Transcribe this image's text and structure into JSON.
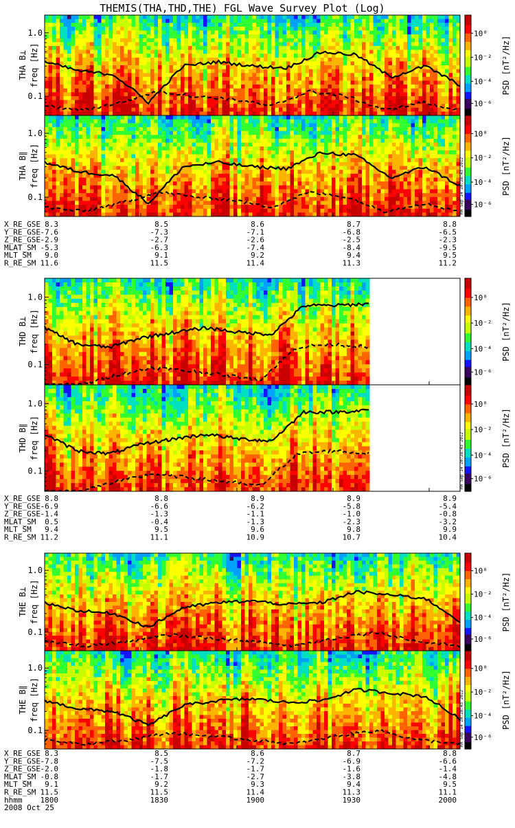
{
  "title": "THEMIS(THA,THD,THE) FGL Wave Survey Plot (Log)",
  "colorbar": {
    "label": "PSD [nT²/Hz]",
    "tick_labels": [
      "10⁰",
      "10⁻²",
      "10⁻⁴",
      "10⁻⁶"
    ],
    "colors": [
      "#000000",
      "#3a0060",
      "#1414ff",
      "#00a0ff",
      "#00e0c0",
      "#32ff32",
      "#c8ff00",
      "#ffff00",
      "#ffb400",
      "#ff6400",
      "#ff0000",
      "#c80000"
    ]
  },
  "stamp": "RH Sep 14 20:28:43 2012",
  "time_axis": {
    "label": "hhmm",
    "date": "2008 Oct 25",
    "ticks": [
      "1800",
      "1830",
      "1900",
      "1930",
      "2000"
    ]
  },
  "chart_data": [
    {
      "type": "heatmap",
      "probe": "THA",
      "panels": [
        {
          "ylabel_component": "THA B⊥",
          "ylabel_axis": "freq [Hz]"
        },
        {
          "ylabel_component": "THA B∥",
          "ylabel_axis": "freq [Hz]"
        }
      ],
      "y_scale": "log",
      "y_tick_labels": [
        "1.0",
        "0.1"
      ],
      "ylim": [
        0.05,
        1.9
      ],
      "x_range": [
        "1800",
        "2000"
      ],
      "solid_line_approx_hz": [
        0.35,
        0.25,
        0.22,
        0.08,
        0.3,
        0.35,
        0.3,
        0.28,
        0.5,
        0.45,
        0.2,
        0.3,
        0.15
      ],
      "dashed_line_approx_hz": [
        0.07,
        0.06,
        0.08,
        0.12,
        0.1,
        0.09,
        0.07,
        0.12,
        0.1,
        0.06,
        0.08,
        0.06
      ]
    },
    {
      "type": "heatmap",
      "probe": "THD",
      "panels": [
        {
          "ylabel_component": "THD B⊥",
          "ylabel_axis": "freq [Hz]"
        },
        {
          "ylabel_component": "THD B∥",
          "ylabel_axis": "freq [Hz]"
        }
      ],
      "y_scale": "log",
      "y_tick_labels": [
        "1.0",
        "0.1"
      ],
      "ylim": [
        0.05,
        1.9
      ],
      "x_range": [
        "1800",
        "2000"
      ],
      "data_end_fraction": 0.78,
      "solid_line_approx_hz": [
        0.35,
        0.2,
        0.18,
        0.25,
        0.3,
        0.35,
        0.3,
        0.28,
        0.75,
        0.75,
        0.8
      ],
      "dashed_line_approx_hz": [
        0.05,
        0.05,
        0.07,
        0.09,
        0.08,
        0.07,
        0.06,
        0.18,
        0.2,
        0.18
      ]
    },
    {
      "type": "heatmap",
      "probe": "THE",
      "panels": [
        {
          "ylabel_component": "THE B⊥",
          "ylabel_axis": "freq [Hz]"
        },
        {
          "ylabel_component": "THE B∥",
          "ylabel_axis": "freq [Hz]"
        }
      ],
      "y_scale": "log",
      "y_tick_labels": [
        "1.0",
        "0.1"
      ],
      "ylim": [
        0.05,
        1.9
      ],
      "x_range": [
        "1800",
        "2000"
      ],
      "solid_line_approx_hz": [
        0.3,
        0.22,
        0.2,
        0.12,
        0.25,
        0.3,
        0.32,
        0.28,
        0.3,
        0.45,
        0.4,
        0.35,
        0.15
      ],
      "dashed_line_approx_hz": [
        0.07,
        0.06,
        0.07,
        0.09,
        0.08,
        0.07,
        0.06,
        0.08,
        0.1,
        0.07,
        0.06
      ]
    }
  ],
  "orbit_tables": [
    {
      "rows": [
        {
          "name": "X_RE_GSE",
          "values": [
            "8.3",
            "8.5",
            "8.6",
            "8.7",
            "8.8"
          ]
        },
        {
          "name": "Y_RE_GSE",
          "values": [
            "-7.6",
            "-7.3",
            "-7.1",
            "-6.8",
            "-6.5"
          ]
        },
        {
          "name": "Z_RE_GSE",
          "values": [
            "-2.9",
            "-2.7",
            "-2.6",
            "-2.5",
            "-2.3"
          ]
        },
        {
          "name": "MLAT_SM",
          "values": [
            "-5.3",
            "-6.3",
            "-7.4",
            "-8.4",
            "-9.5"
          ]
        },
        {
          "name": "MLT_SM",
          "values": [
            "9.0",
            "9.1",
            "9.2",
            "9.4",
            "9.5"
          ]
        },
        {
          "name": "R_RE_SM",
          "values": [
            "11.6",
            "11.5",
            "11.4",
            "11.3",
            "11.2"
          ]
        }
      ]
    },
    {
      "rows": [
        {
          "name": "X_RE_GSE",
          "values": [
            "8.8",
            "8.8",
            "8.9",
            "8.9",
            "8.9"
          ]
        },
        {
          "name": "Y_RE_GSE",
          "values": [
            "-6.9",
            "-6.6",
            "-6.2",
            "-5.8",
            "-5.4"
          ]
        },
        {
          "name": "Z_RE_GSE",
          "values": [
            "-1.4",
            "-1.3",
            "-1.1",
            "-1.0",
            "-0.8"
          ]
        },
        {
          "name": "MLAT_SM",
          "values": [
            "0.5",
            "-0.4",
            "-1.3",
            "-2.3",
            "-3.2"
          ]
        },
        {
          "name": "MLT_SM",
          "values": [
            "9.4",
            "9.5",
            "9.6",
            "9.8",
            "9.9"
          ]
        },
        {
          "name": "R_RE_SM",
          "values": [
            "11.2",
            "11.1",
            "10.9",
            "10.7",
            "10.4"
          ]
        }
      ]
    },
    {
      "rows": [
        {
          "name": "X_RE_GSE",
          "values": [
            "8.3",
            "8.5",
            "8.6",
            "8.7",
            "8.8"
          ]
        },
        {
          "name": "Y_RE_GSE",
          "values": [
            "-7.8",
            "-7.5",
            "-7.2",
            "-6.9",
            "-6.6"
          ]
        },
        {
          "name": "Z_RE_GSE",
          "values": [
            "-2.0",
            "-1.8",
            "-1.7",
            "-1.6",
            "-1.4"
          ]
        },
        {
          "name": "MLAT_SM",
          "values": [
            "-0.8",
            "-1.7",
            "-2.7",
            "-3.8",
            "-4.8"
          ]
        },
        {
          "name": "MLT_SM",
          "values": [
            "9.1",
            "9.2",
            "9.3",
            "9.4",
            "9.5"
          ]
        },
        {
          "name": "R_RE_SM",
          "values": [
            "11.5",
            "11.5",
            "11.4",
            "11.3",
            "11.1"
          ]
        }
      ]
    }
  ]
}
